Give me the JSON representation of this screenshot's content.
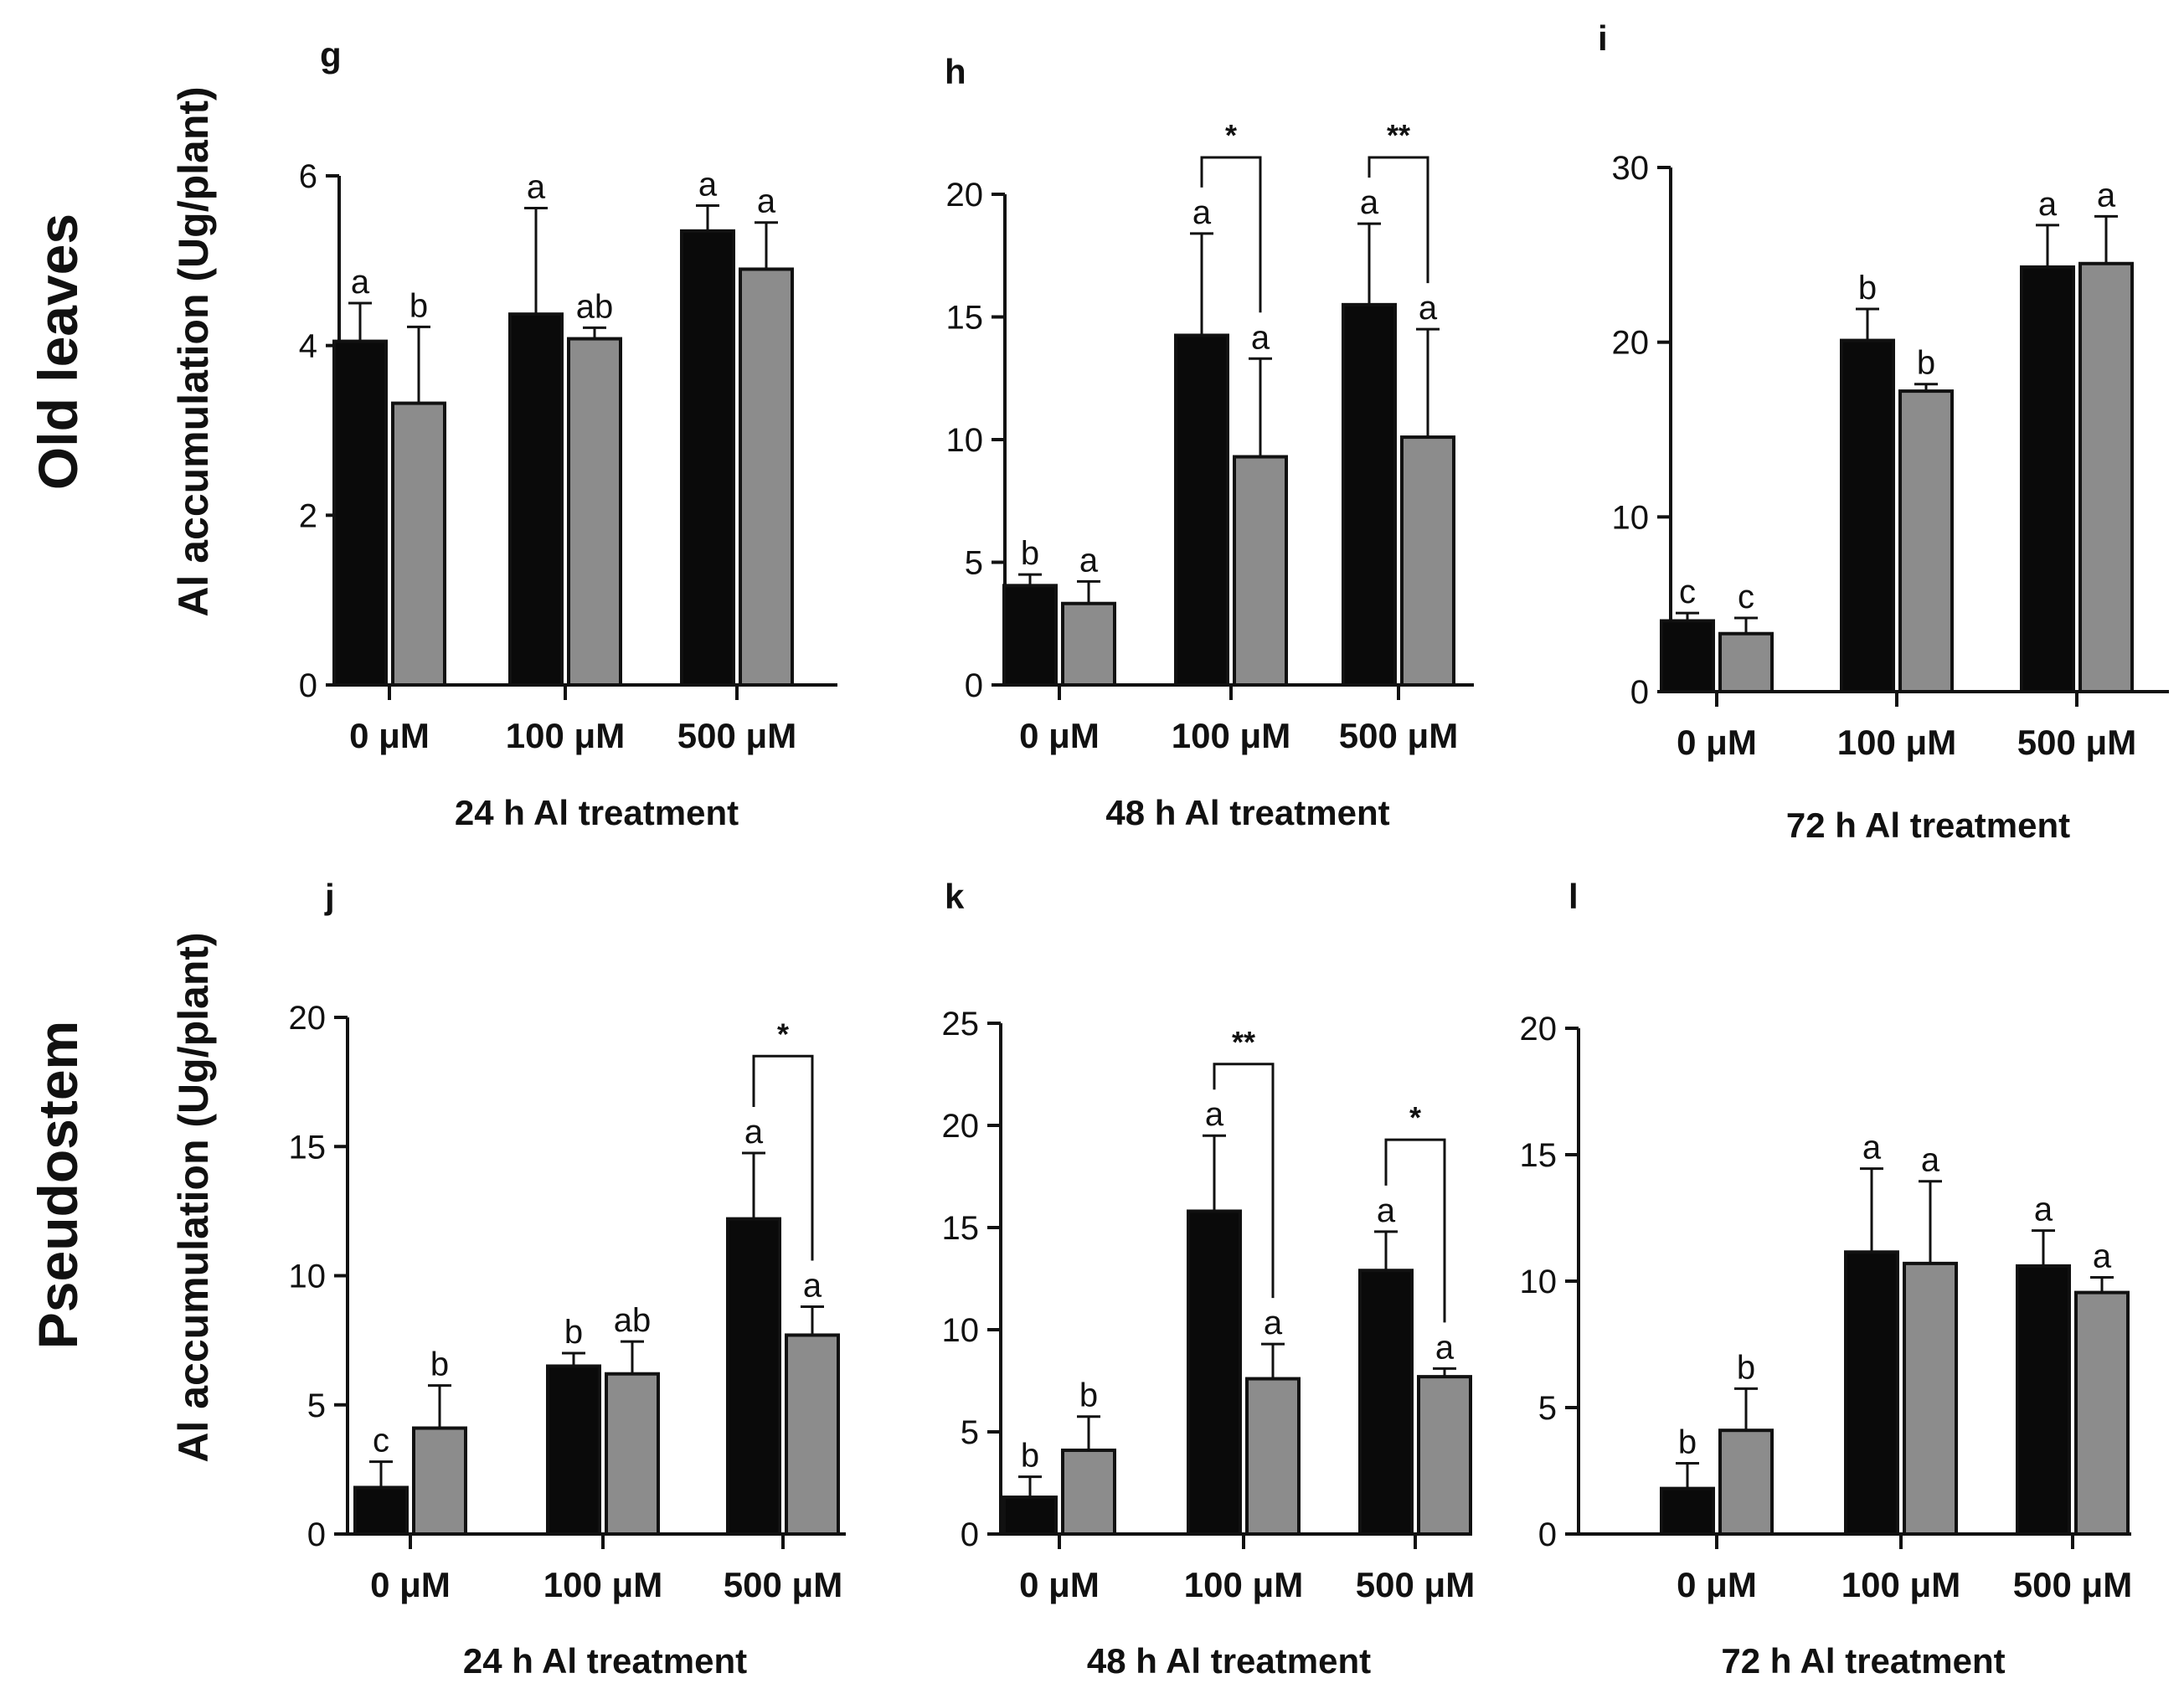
{
  "figure": {
    "row_labels": [
      "Old leaves",
      "Pseudostem"
    ],
    "ylabel": "Al accumulation (Ug/plant)",
    "bar_colors": [
      "#0a0a0a",
      "#8c8c8c"
    ]
  },
  "chart_data": [
    {
      "panel": "g",
      "type": "bar",
      "title": "",
      "xlabel": "24 h Al treatment",
      "categories": [
        "0 μM",
        "100 μM",
        "500 μM"
      ],
      "ylim": [
        0,
        6
      ],
      "yticks": [
        "0",
        "2",
        "4",
        "6"
      ],
      "ytick_values": [
        0,
        2,
        4,
        6
      ],
      "series": [
        {
          "name": "black",
          "values": [
            4.05,
            4.37,
            5.35
          ],
          "errors": [
            0.45,
            1.25,
            0.3
          ],
          "letters": [
            "a",
            "a",
            "a"
          ]
        },
        {
          "name": "gray",
          "values": [
            3.32,
            4.08,
            4.9
          ],
          "errors": [
            0.9,
            0.13,
            0.55
          ],
          "letters": [
            "b",
            "ab",
            "a"
          ]
        }
      ],
      "significance": []
    },
    {
      "panel": "h",
      "type": "bar",
      "title": "",
      "xlabel": "48 h Al treatment",
      "categories": [
        "0 μM",
        "100 μM",
        "500 μM"
      ],
      "ylim": [
        0,
        20
      ],
      "yticks": [
        "0",
        "5",
        "10",
        "15",
        "20"
      ],
      "ytick_values": [
        0,
        5,
        10,
        15,
        20
      ],
      "series": [
        {
          "name": "black",
          "values": [
            4.05,
            14.25,
            15.5
          ],
          "errors": [
            0.45,
            4.15,
            3.3
          ],
          "letters": [
            "b",
            "a",
            "a"
          ]
        },
        {
          "name": "gray",
          "values": [
            3.32,
            9.3,
            10.1
          ],
          "errors": [
            0.9,
            4.0,
            4.4
          ],
          "letters": [
            "a",
            "a",
            "a"
          ]
        }
      ],
      "significance": [
        {
          "category": 1,
          "label": "*",
          "top": 21.5
        },
        {
          "category": 2,
          "label": "**",
          "top": 21.5
        }
      ]
    },
    {
      "panel": "i",
      "type": "bar",
      "title": "",
      "xlabel": "72 h Al treatment",
      "categories": [
        "0 μM",
        "100 μM",
        "500 μM"
      ],
      "ylim": [
        0,
        30
      ],
      "yticks": [
        "0",
        "10",
        "20",
        "30"
      ],
      "ytick_values": [
        0,
        10,
        20,
        30
      ],
      "series": [
        {
          "name": "black",
          "values": [
            4.05,
            20.1,
            24.3
          ],
          "errors": [
            0.45,
            1.8,
            2.4
          ],
          "letters": [
            "c",
            "b",
            "a"
          ]
        },
        {
          "name": "gray",
          "values": [
            3.32,
            17.2,
            24.5
          ],
          "errors": [
            0.9,
            0.4,
            2.7
          ],
          "letters": [
            "c",
            "b",
            "a"
          ]
        }
      ],
      "significance": []
    },
    {
      "panel": "j",
      "type": "bar",
      "title": "",
      "xlabel": "24 h Al treatment",
      "categories": [
        "0 μM",
        "100 μM",
        "500 μM"
      ],
      "ylim": [
        0,
        20
      ],
      "yticks": [
        "0",
        "5",
        "10",
        "15",
        "20"
      ],
      "ytick_values": [
        0,
        5,
        10,
        15,
        20
      ],
      "series": [
        {
          "name": "black",
          "values": [
            1.8,
            6.5,
            12.2
          ],
          "errors": [
            1.0,
            0.5,
            2.55
          ],
          "letters": [
            "c",
            "b",
            "a"
          ]
        },
        {
          "name": "gray",
          "values": [
            4.1,
            6.2,
            7.7
          ],
          "errors": [
            1.65,
            1.25,
            1.1
          ],
          "letters": [
            "b",
            "ab",
            "a"
          ]
        }
      ],
      "significance": [
        {
          "category": 2,
          "label": "*",
          "top": 18.5
        }
      ]
    },
    {
      "panel": "k",
      "type": "bar",
      "title": "",
      "xlabel": "48 h Al treatment",
      "categories": [
        "0 μM",
        "100 μM",
        "500 μM"
      ],
      "ylim": [
        0,
        25
      ],
      "yticks": [
        "0",
        "5",
        "10",
        "15",
        "20",
        "25"
      ],
      "ytick_values": [
        0,
        5,
        10,
        15,
        20,
        25
      ],
      "series": [
        {
          "name": "black",
          "values": [
            1.8,
            15.8,
            12.9
          ],
          "errors": [
            1.0,
            3.7,
            1.9
          ],
          "letters": [
            "b",
            "a",
            "a"
          ]
        },
        {
          "name": "gray",
          "values": [
            4.1,
            7.6,
            7.7
          ],
          "errors": [
            1.65,
            1.7,
            0.4
          ],
          "letters": [
            "b",
            "a",
            "a"
          ]
        }
      ],
      "significance": [
        {
          "category": 1,
          "label": "**",
          "top": 23.0
        },
        {
          "category": 2,
          "label": "*",
          "top": 19.3
        }
      ]
    },
    {
      "panel": "l",
      "type": "bar",
      "title": "",
      "xlabel": "72 h Al treatment",
      "categories": [
        "0 μM",
        "100 μM",
        "500 μM"
      ],
      "ylim": [
        0,
        20
      ],
      "yticks": [
        "0",
        "5",
        "10",
        "15",
        "20"
      ],
      "ytick_values": [
        0,
        5,
        10,
        15,
        20
      ],
      "series": [
        {
          "name": "black",
          "values": [
            1.8,
            11.15,
            10.6
          ],
          "errors": [
            1.0,
            3.3,
            1.4
          ],
          "letters": [
            "b",
            "a",
            "a"
          ]
        },
        {
          "name": "gray",
          "values": [
            4.1,
            10.7,
            9.55
          ],
          "errors": [
            1.65,
            3.25,
            0.6
          ],
          "letters": [
            "b",
            "a",
            "a"
          ]
        }
      ],
      "significance": []
    }
  ]
}
